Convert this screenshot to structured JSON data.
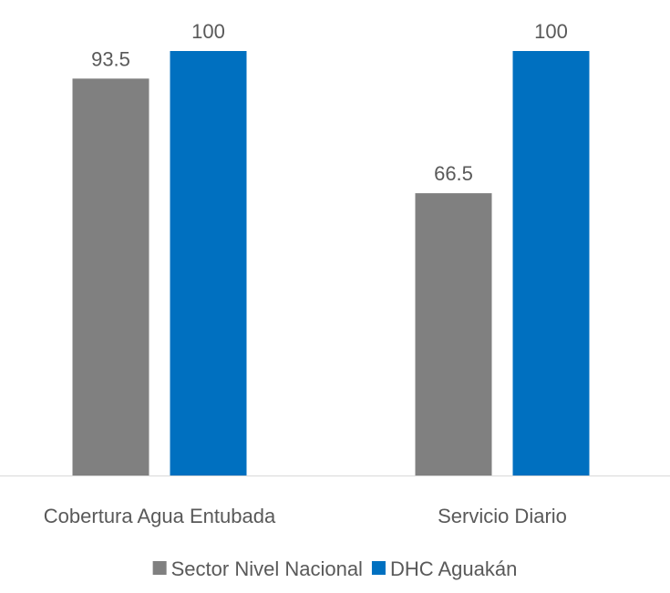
{
  "chart_data": {
    "type": "bar",
    "categories": [
      "Cobertura Agua Entubada",
      "Servicio Diario"
    ],
    "series": [
      {
        "name": "Sector Nivel Nacional",
        "values": [
          93.5,
          66.5
        ],
        "color": "#808080"
      },
      {
        "name": "DHC Aguakán",
        "values": [
          100,
          100
        ],
        "color": "#0070C0"
      }
    ],
    "value_labels": [
      [
        "93.5",
        "66.5"
      ],
      [
        "100",
        "100"
      ]
    ],
    "ylim": [
      0,
      100
    ],
    "grid": false,
    "y_axis_visible": false,
    "legend_position": "bottom",
    "label_color": "#595959"
  }
}
